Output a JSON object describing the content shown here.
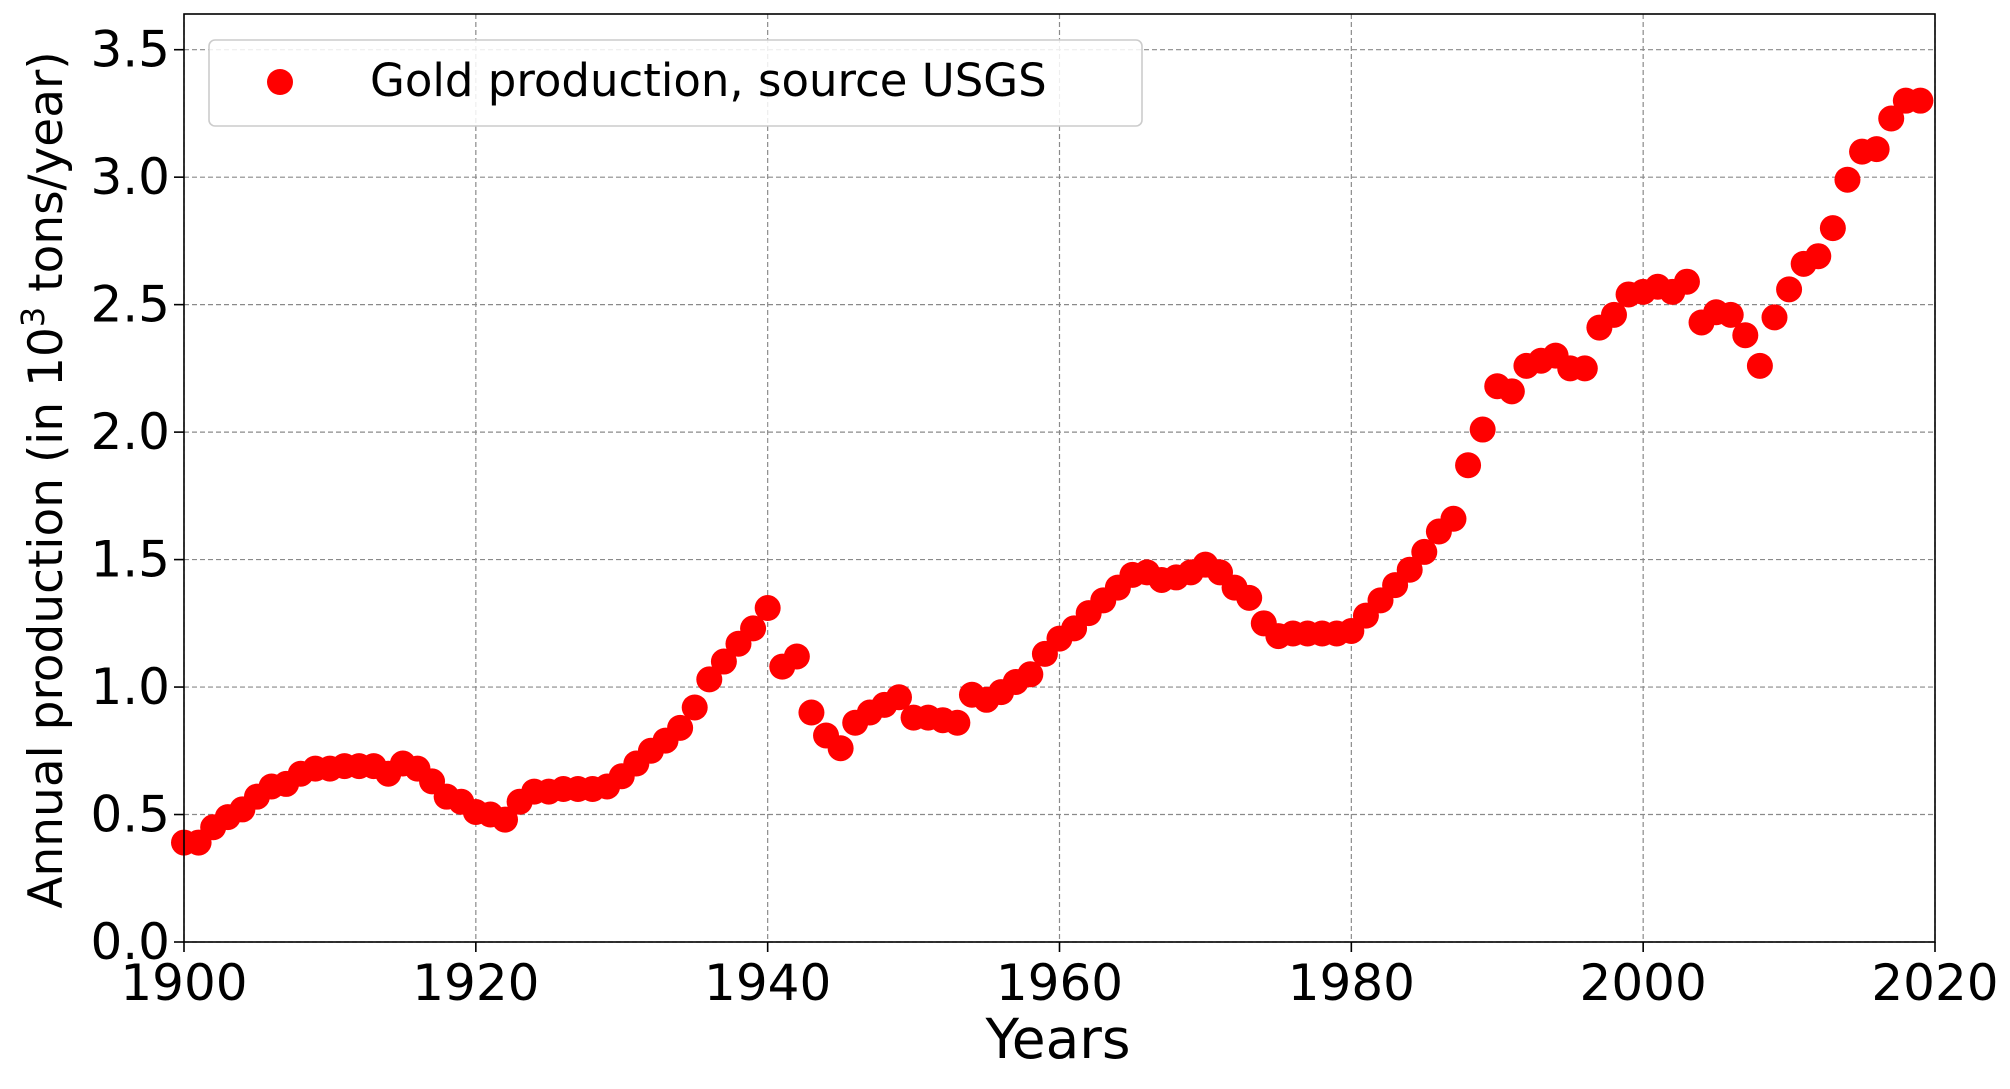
{
  "chart_data": {
    "type": "scatter",
    "title": "",
    "xlabel": "Years",
    "ylabel_prefix": "Annual production (in 10",
    "ylabel_sup": "3",
    "ylabel_suffix": " tons/year)",
    "xlim": [
      1900,
      2020
    ],
    "ylim": [
      0.0,
      3.64
    ],
    "xticks": [
      1900,
      1920,
      1940,
      1960,
      1980,
      2000,
      2020
    ],
    "xtick_labels": [
      "1900",
      "1920",
      "1940",
      "1960",
      "1980",
      "2000",
      "2020"
    ],
    "yticks": [
      0.0,
      0.5,
      1.0,
      1.5,
      2.0,
      2.5,
      3.0,
      3.5
    ],
    "ytick_labels": [
      "0.0",
      "0.5",
      "1.0",
      "1.5",
      "2.0",
      "2.5",
      "3.0",
      "3.5"
    ],
    "grid": true,
    "legend_position": "top-left",
    "marker_color": "#ff0000",
    "series": [
      {
        "name": "Gold production, source USGS",
        "x": [
          1900,
          1901,
          1902,
          1903,
          1904,
          1905,
          1906,
          1907,
          1908,
          1909,
          1910,
          1911,
          1912,
          1913,
          1914,
          1915,
          1916,
          1917,
          1918,
          1919,
          1920,
          1921,
          1922,
          1923,
          1924,
          1925,
          1926,
          1927,
          1928,
          1929,
          1930,
          1931,
          1932,
          1933,
          1934,
          1935,
          1936,
          1937,
          1938,
          1939,
          1940,
          1941,
          1942,
          1943,
          1944,
          1945,
          1946,
          1947,
          1948,
          1949,
          1950,
          1951,
          1952,
          1953,
          1954,
          1955,
          1956,
          1957,
          1958,
          1959,
          1960,
          1961,
          1962,
          1963,
          1964,
          1965,
          1966,
          1967,
          1968,
          1969,
          1970,
          1971,
          1972,
          1973,
          1974,
          1975,
          1976,
          1977,
          1978,
          1979,
          1980,
          1981,
          1982,
          1983,
          1984,
          1985,
          1986,
          1987,
          1988,
          1989,
          1990,
          1991,
          1992,
          1993,
          1994,
          1995,
          1996,
          1997,
          1998,
          1999,
          2000,
          2001,
          2002,
          2003,
          2004,
          2005,
          2006,
          2007,
          2008,
          2009,
          2010,
          2011,
          2012,
          2013,
          2014,
          2015,
          2016,
          2017,
          2018,
          2019
        ],
        "y": [
          0.39,
          0.39,
          0.45,
          0.49,
          0.52,
          0.57,
          0.61,
          0.62,
          0.66,
          0.68,
          0.68,
          0.69,
          0.69,
          0.69,
          0.66,
          0.7,
          0.68,
          0.63,
          0.57,
          0.55,
          0.51,
          0.5,
          0.48,
          0.55,
          0.59,
          0.59,
          0.6,
          0.6,
          0.6,
          0.61,
          0.65,
          0.7,
          0.75,
          0.79,
          0.84,
          0.92,
          1.03,
          1.1,
          1.17,
          1.23,
          1.31,
          1.08,
          1.12,
          0.9,
          0.81,
          0.76,
          0.86,
          0.9,
          0.93,
          0.96,
          0.88,
          0.88,
          0.87,
          0.86,
          0.97,
          0.95,
          0.98,
          1.02,
          1.05,
          1.13,
          1.19,
          1.23,
          1.29,
          1.34,
          1.39,
          1.44,
          1.45,
          1.42,
          1.43,
          1.45,
          1.48,
          1.45,
          1.39,
          1.35,
          1.25,
          1.2,
          1.21,
          1.21,
          1.21,
          1.21,
          1.22,
          1.28,
          1.34,
          1.4,
          1.46,
          1.53,
          1.61,
          1.66,
          1.87,
          2.01,
          2.18,
          2.16,
          2.26,
          2.28,
          2.3,
          2.25,
          2.25,
          2.41,
          2.46,
          2.54,
          2.55,
          2.57,
          2.55,
          2.59,
          2.43,
          2.47,
          2.46,
          2.38,
          2.26,
          2.45,
          2.56,
          2.66,
          2.69,
          2.8,
          2.99,
          3.1,
          3.11,
          3.23,
          3.3,
          3.3
        ]
      }
    ]
  }
}
